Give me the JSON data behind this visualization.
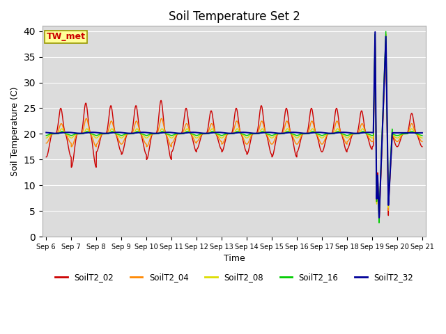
{
  "title": "Soil Temperature Set 2",
  "xlabel": "Time",
  "ylabel": "Soil Temperature (C)",
  "ylim": [
    0,
    41
  ],
  "series_names": [
    "SoilT2_02",
    "SoilT2_04",
    "SoilT2_08",
    "SoilT2_16",
    "SoilT2_32"
  ],
  "series_colors": [
    "#cc0000",
    "#ff8800",
    "#dddd00",
    "#00cc00",
    "#000099"
  ],
  "bg_color": "#dcdcdc",
  "annotation_text": "TW_met",
  "annotation_bg": "#ffff99",
  "annotation_color": "#cc0000",
  "x_tick_labels": [
    "Sep 6",
    "Sep 7",
    "Sep 8",
    "Sep 9",
    "Sep 10",
    "Sep 11",
    "Sep 12",
    "Sep 13",
    "Sep 14",
    "Sep 15",
    "Sep 16",
    "Sep 17",
    "Sep 18",
    "Sep 19",
    "Sep 20",
    "Sep 21"
  ],
  "yticks": [
    0,
    5,
    10,
    15,
    20,
    25,
    30,
    35,
    40
  ],
  "grid_color": "#ffffff"
}
